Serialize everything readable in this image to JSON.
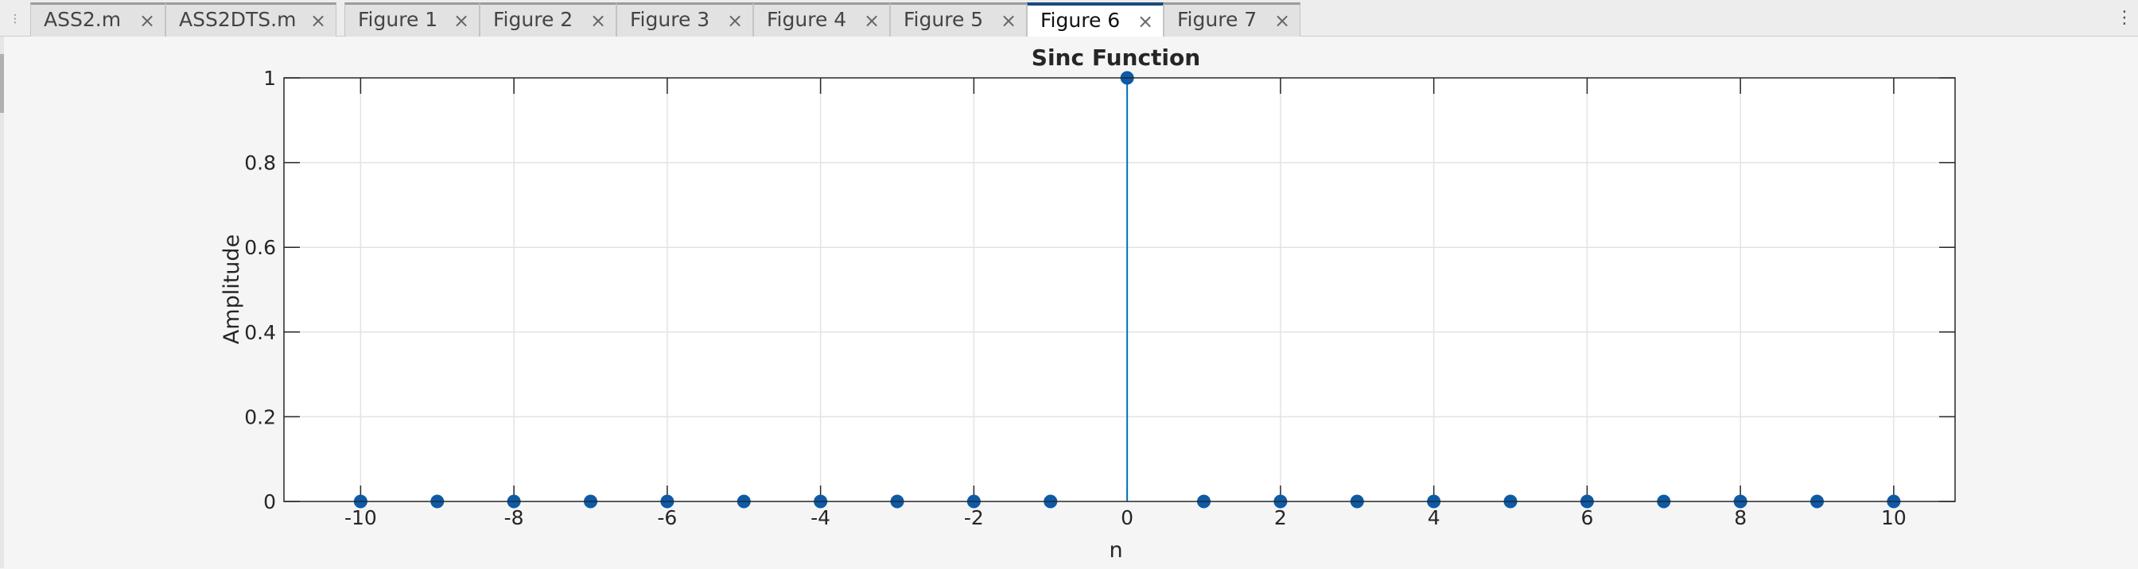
{
  "tabs": [
    {
      "label": "ASS2.m",
      "active": false
    },
    {
      "label": "ASS2DTS.m",
      "active": false
    },
    {
      "label": "Figure 1",
      "active": false
    },
    {
      "label": "Figure 2",
      "active": false
    },
    {
      "label": "Figure 3",
      "active": false
    },
    {
      "label": "Figure 4",
      "active": false
    },
    {
      "label": "Figure 5",
      "active": false
    },
    {
      "label": "Figure 6",
      "active": true
    },
    {
      "label": "Figure 7",
      "active": false
    }
  ],
  "icons": {
    "grip": "grip-icon",
    "close": "close-icon",
    "more": "more-options-icon"
  },
  "colors": {
    "stem": "#0072bd",
    "marker": "#0d5aa7",
    "active_tab": "#1b4b7c"
  },
  "chart_data": {
    "type": "scatter",
    "style": "stem",
    "title": "Sinc Function",
    "xlabel": "n",
    "ylabel": "Amplitude",
    "xlim": [
      -11,
      10.8
    ],
    "ylim": [
      0,
      1
    ],
    "xticks": [
      -10,
      -8,
      -6,
      -4,
      -2,
      0,
      2,
      4,
      6,
      8,
      10
    ],
    "xtick_labels": [
      "-10",
      "-8",
      "-6",
      "-4",
      "-2",
      "0",
      "2",
      "4",
      "6",
      "8",
      "10"
    ],
    "yticks": [
      0,
      0.2,
      0.4,
      0.6,
      0.8,
      1
    ],
    "ytick_labels": [
      "0",
      "0.2",
      "0.4",
      "0.6",
      "0.8",
      "1"
    ],
    "grid": true,
    "x": [
      -10,
      -9,
      -8,
      -7,
      -6,
      -5,
      -4,
      -3,
      -2,
      -1,
      0,
      1,
      2,
      3,
      4,
      5,
      6,
      7,
      8,
      9,
      10
    ],
    "y": [
      0,
      0,
      0,
      0,
      0,
      0,
      0,
      0,
      0,
      0,
      1,
      0,
      0,
      0,
      0,
      0,
      0,
      0,
      0,
      0,
      0
    ]
  }
}
